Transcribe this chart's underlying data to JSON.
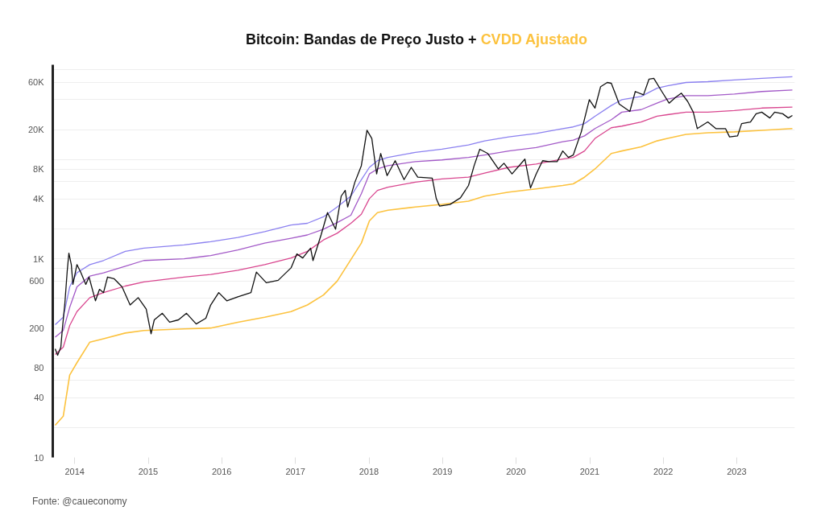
{
  "chart_data": {
    "type": "line",
    "title": "Bitcoin: Bandas de Preço Justo +",
    "annotations": [
      "Fonte: @caueconomy"
    ],
    "log": "y",
    "grid": "y",
    "line_style": "solid",
    "xlim": [
      "2013-09-14",
      "2023-10-16"
    ],
    "xticks": [
      "2014",
      "2015",
      "2016",
      "2017",
      "2018",
      "2019",
      "2020",
      "2021",
      "2022",
      "2023"
    ],
    "ylim": [
      10,
      90000
    ],
    "yticks": [
      10,
      {
        "value": 20,
        "label": null
      },
      40,
      {
        "value": 60,
        "label": null
      },
      80,
      {
        "value": 100,
        "label": null
      },
      200,
      {
        "value": 400,
        "label": null
      },
      600,
      {
        "value": 800,
        "label": null
      },
      {
        "value": 1000,
        "label": "1K"
      },
      {
        "value": 2000,
        "label": null
      },
      {
        "value": 4000,
        "label": "4K"
      },
      {
        "value": 6000,
        "label": null
      },
      {
        "value": 8000,
        "label": "8K"
      },
      {
        "value": 10000,
        "label": null
      },
      {
        "value": 20000,
        "label": "20K"
      },
      {
        "value": 40000,
        "label": null
      },
      {
        "value": 60000,
        "label": "60K"
      },
      {
        "value": 80000,
        "label": null
      }
    ],
    "x": [
      "2013-09-26",
      "2013-11-05",
      "2013-12-07",
      "2014-01-12",
      "2014-03-17",
      "2014-05-24",
      "2014-09-09",
      "2014-12-10",
      "2015-06-28",
      "2015-11-07",
      "2016-03-21",
      "2016-08-01",
      "2016-12-10",
      "2017-03-01",
      "2017-05-20",
      "2017-07-27",
      "2017-10-03",
      "2017-11-24",
      "2018-01-03",
      "2018-02-12",
      "2018-04-05",
      "2018-08-19",
      "2018-12-29",
      "2019-05-10",
      "2019-07-29",
      "2019-11-26",
      "2020-04-10",
      "2020-08-20",
      "2020-10-11",
      "2020-12-06",
      "2021-01-27",
      "2021-04-18",
      "2021-06-09",
      "2021-09-13",
      "2021-12-01",
      "2022-01-22",
      "2022-04-24",
      "2022-08-10",
      "2022-12-20",
      "2023-05-05",
      "2023-10-04"
    ],
    "series": [
      {
        "color": "#8b80f0",
        "values": [
          217,
          258,
          522,
          723,
          875,
          962,
          1190,
          1280,
          1380,
          1490,
          1640,
          1880,
          2190,
          2280,
          2650,
          3330,
          4280,
          6270,
          8340,
          9730,
          10500,
          11800,
          12700,
          14000,
          15400,
          16900,
          18300,
          20500,
          21300,
          23000,
          27300,
          35000,
          40000,
          43200,
          52200,
          55300,
          59700,
          60800,
          63200,
          65700,
          68200
        ]
      },
      {
        "color": "#a35ac8",
        "values": [
          163,
          190,
          324,
          522,
          670,
          723,
          841,
          962,
          1000,
          1080,
          1230,
          1440,
          1610,
          1740,
          1990,
          2320,
          2750,
          4530,
          7160,
          8040,
          8670,
          9530,
          9910,
          10500,
          11100,
          12200,
          13200,
          15100,
          15700,
          17300,
          20500,
          25200,
          30000,
          31800,
          37000,
          40700,
          44000,
          44000,
          45700,
          48400,
          50200
        ]
      },
      {
        "color": "#d9468f",
        "values": [
          109,
          129,
          213,
          294,
          407,
          457,
          532,
          586,
          656,
          695,
          766,
          875,
          1020,
          1190,
          1550,
          1810,
          2280,
          2810,
          4040,
          4890,
          5270,
          5920,
          6380,
          6640,
          7300,
          8340,
          9000,
          10100,
          10500,
          12200,
          16300,
          20900,
          21700,
          23900,
          27300,
          28300,
          30000,
          30000,
          31200,
          33000,
          33700
        ]
      },
      {
        "name": "CVDD Ajustado",
        "color": "#fcc23e",
        "values": [
          21.1,
          26.0,
          67.6,
          90.0,
          145,
          157,
          179,
          190,
          197,
          201,
          230,
          258,
          294,
          343,
          432,
          597,
          982,
          1440,
          2410,
          2920,
          3090,
          3330,
          3530,
          3810,
          4280,
          4700,
          5070,
          5480,
          5690,
          6640,
          8040,
          11500,
          12200,
          13400,
          15400,
          16300,
          17900,
          18600,
          19000,
          19700,
          20500
        ]
      },
      {
        "color": "#111111",
        "x": [
          "2013-09-26",
          "2013-10-08",
          "2013-10-24",
          "2013-11-01",
          "2013-11-13",
          "2013-11-25",
          "2013-12-03",
          "2013-12-15",
          "2013-12-23",
          "2014-01-12",
          "2014-02-01",
          "2014-02-25",
          "2014-03-13",
          "2014-04-14",
          "2014-05-04",
          "2014-05-24",
          "2014-06-13",
          "2014-07-15",
          "2014-08-24",
          "2014-10-03",
          "2014-11-12",
          "2014-12-22",
          "2015-01-15",
          "2015-01-31",
          "2015-03-12",
          "2015-04-17",
          "2015-05-31",
          "2015-07-10",
          "2015-08-27",
          "2015-10-14",
          "2015-11-07",
          "2015-12-17",
          "2016-01-26",
          "2016-03-21",
          "2016-05-25",
          "2016-06-21",
          "2016-08-09",
          "2016-10-07",
          "2016-12-10",
          "2017-01-08",
          "2017-02-06",
          "2017-03-17",
          "2017-03-29",
          "2017-05-08",
          "2017-06-09",
          "2017-07-19",
          "2017-08-16",
          "2017-09-05",
          "2017-09-17",
          "2017-10-23",
          "2017-11-24",
          "2017-12-22",
          "2018-01-15",
          "2018-02-08",
          "2018-02-28",
          "2018-04-01",
          "2018-05-11",
          "2018-06-24",
          "2018-07-30",
          "2018-08-31",
          "2018-11-11",
          "2018-12-01",
          "2018-12-17",
          "2019-02-07",
          "2019-03-31",
          "2019-05-10",
          "2019-06-07",
          "2019-07-05",
          "2019-08-14",
          "2019-10-05",
          "2019-11-02",
          "2019-12-12",
          "2020-02-14",
          "2020-03-13",
          "2020-04-10",
          "2020-05-12",
          "2020-06-13",
          "2020-07-23",
          "2020-08-20",
          "2020-09-17",
          "2020-10-11",
          "2020-11-20",
          "2020-12-30",
          "2021-01-27",
          "2021-02-24",
          "2021-03-29",
          "2021-04-18",
          "2021-05-15",
          "2021-05-27",
          "2021-07-19",
          "2021-08-15",
          "2021-09-25",
          "2021-10-22",
          "2021-11-15",
          "2021-12-25",
          "2022-01-30",
          "2022-03-03",
          "2022-04-01",
          "2022-05-02",
          "2022-05-30",
          "2022-06-19",
          "2022-08-10",
          "2022-09-19",
          "2022-11-06",
          "2022-11-26",
          "2023-01-05",
          "2023-01-25",
          "2023-03-10",
          "2023-04-07",
          "2023-05-05",
          "2023-06-14",
          "2023-07-08",
          "2023-08-17",
          "2023-09-14",
          "2023-10-04"
        ],
        "values": [
          124,
          107,
          129,
          201,
          356,
          766,
          1140,
          875,
          553,
          875,
          723,
          553,
          656,
          378,
          493,
          457,
          656,
          632,
          522,
          343,
          407,
          312,
          176,
          243,
          283,
          230,
          243,
          283,
          221,
          252,
          343,
          457,
          378,
          415,
          457,
          736,
          574,
          608,
          811,
          1120,
          1020,
          1280,
          962,
          1740,
          2920,
          1990,
          4280,
          4890,
          3330,
          5920,
          8670,
          19700,
          16300,
          7160,
          11500,
          6890,
          9730,
          6270,
          8340,
          6640,
          6500,
          4040,
          3400,
          3530,
          4110,
          5480,
          8670,
          12700,
          11500,
          8040,
          9180,
          7160,
          10100,
          5180,
          7160,
          9730,
          9530,
          9530,
          12200,
          10500,
          11100,
          19000,
          40000,
          33000,
          54200,
          59700,
          58600,
          42300,
          36300,
          30500,
          48400,
          44800,
          64400,
          65700,
          48400,
          37000,
          42300,
          46600,
          38500,
          30000,
          20500,
          23900,
          20500,
          20500,
          16900,
          17300,
          23000,
          23900,
          28900,
          30000,
          26200,
          30000,
          28900,
          26200,
          27800
        ]
      }
    ]
  }
}
